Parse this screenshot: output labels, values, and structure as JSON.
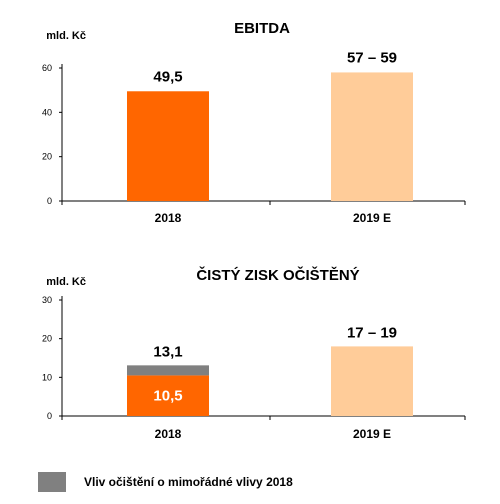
{
  "chart_data": [
    {
      "type": "bar",
      "title": "EBITDA",
      "unit_label": "mld. Kč",
      "categories": [
        "2018",
        "2019 E"
      ],
      "yticks": [
        "0",
        "20",
        "40",
        "60"
      ],
      "ylim": [
        0,
        70
      ],
      "grid": false,
      "bars": [
        {
          "category": "2018",
          "value": 49.5,
          "label": "49,5",
          "color": "#ff6600"
        },
        {
          "category": "2019 E",
          "value": 58,
          "label": "57 – 59",
          "color": "#ffcc99"
        }
      ]
    },
    {
      "type": "bar",
      "title": "ČISTÝ ZISK OČIŠTĚNÝ",
      "unit_label": "mld. Kč",
      "categories": [
        "2018",
        "2019 E"
      ],
      "yticks": [
        "0",
        "10",
        "20",
        "30"
      ],
      "ylim": [
        0,
        30
      ],
      "grid": false,
      "stacked": true,
      "bars": [
        {
          "category": "2018",
          "total_label": "13,1",
          "segments": [
            {
              "value": 10.5,
              "label": "10,5",
              "color": "#ff6600"
            },
            {
              "value": 2.6,
              "label": "",
              "color": "#808080"
            }
          ]
        },
        {
          "category": "2019 E",
          "total_label": "17 – 19",
          "segments": [
            {
              "value": 18,
              "label": "",
              "color": "#ffcc99"
            }
          ]
        }
      ]
    }
  ],
  "legend": {
    "label": "Vliv očištění o mimořádné vlivy 2018",
    "color": "#808080",
    "placement": "bottom-left"
  }
}
